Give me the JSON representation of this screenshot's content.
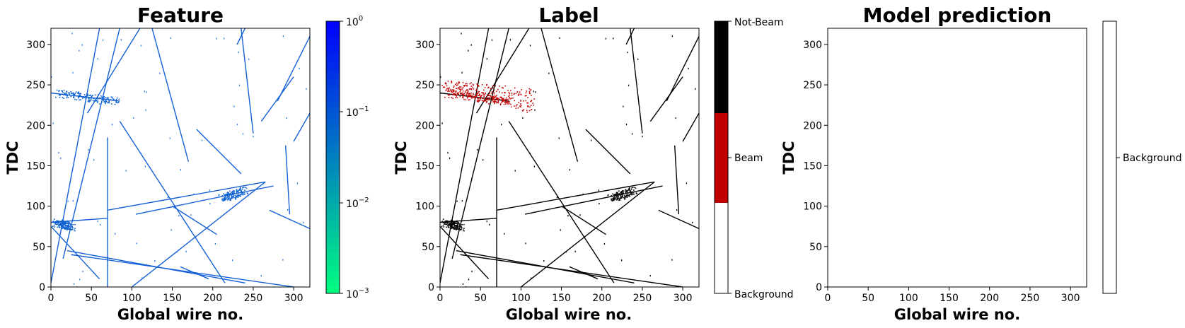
{
  "panels": [
    {
      "title": "Feature",
      "xlabel": "Global wire no.",
      "ylabel": "TDC",
      "colorbar": {
        "scale": "log",
        "range": [
          0.001,
          1
        ],
        "ticks": [
          {
            "base": "10",
            "exp": "0"
          },
          {
            "base": "10",
            "exp": "−1"
          },
          {
            "base": "10",
            "exp": "−2"
          },
          {
            "base": "10",
            "exp": "−3"
          }
        ],
        "colors": [
          "#00ff80",
          "#0000ff"
        ]
      }
    },
    {
      "title": "Label",
      "xlabel": "Global wire no.",
      "ylabel": "TDC",
      "colorbar": {
        "type": "categorical",
        "labels": [
          "Not-Beam",
          "Beam",
          "Background"
        ],
        "colors": [
          "#000000",
          "#c00000",
          "#ffffff"
        ]
      }
    },
    {
      "title": "Model prediction",
      "xlabel": "Global wire no.",
      "ylabel": "TDC",
      "colorbar": {
        "type": "categorical",
        "labels": [
          "Background"
        ],
        "colors": [
          "#ffffff"
        ]
      }
    }
  ],
  "chart_data": [
    {
      "type": "heatmap",
      "title": "Feature",
      "xlabel": "Global wire no.",
      "ylabel": "TDC",
      "xlim": [
        0,
        320
      ],
      "ylim": [
        0,
        320
      ],
      "xticks": [
        0,
        50,
        100,
        150,
        200,
        250,
        300
      ],
      "yticks": [
        0,
        50,
        100,
        150,
        200,
        250,
        300
      ],
      "color": "#1560d8",
      "tracks": [
        [
          [
            0,
            75
          ],
          [
            60,
            10
          ]
        ],
        [
          [
            0,
            5
          ],
          [
            60,
            320
          ]
        ],
        [
          [
            45,
            215
          ],
          [
            110,
            320
          ]
        ],
        [
          [
            15,
            35
          ],
          [
            85,
            320
          ]
        ],
        [
          [
            85,
            205
          ],
          [
            215,
            5
          ]
        ],
        [
          [
            230,
            300
          ],
          [
            245,
            330
          ]
        ],
        [
          [
            170,
            155
          ],
          [
            125,
            320
          ]
        ],
        [
          [
            150,
            100
          ],
          [
            205,
            65
          ]
        ],
        [
          [
            70,
            95
          ],
          [
            265,
            130
          ]
        ],
        [
          [
            100,
            0
          ],
          [
            265,
            130
          ]
        ],
        [
          [
            25,
            40
          ],
          [
            300,
            0
          ]
        ],
        [
          [
            70,
            185
          ],
          [
            70,
            0
          ]
        ],
        [
          [
            0,
            80
          ],
          [
            70,
            85
          ]
        ],
        [
          [
            105,
            90
          ],
          [
            275,
            125
          ]
        ],
        [
          [
            20,
            45
          ],
          [
            240,
            5
          ]
        ],
        [
          [
            180,
            195
          ],
          [
            235,
            140
          ]
        ],
        [
          [
            260,
            205
          ],
          [
            300,
            260
          ]
        ],
        [
          [
            280,
            230
          ],
          [
            320,
            310
          ]
        ],
        [
          [
            300,
            180
          ],
          [
            320,
            215
          ]
        ],
        [
          [
            270,
            95
          ],
          [
            325,
            70
          ]
        ],
        [
          [
            250,
            190
          ],
          [
            235,
            320
          ]
        ],
        [
          [
            295,
            90
          ],
          [
            290,
            175
          ]
        ],
        [
          [
            160,
            25
          ],
          [
            195,
            10
          ]
        ],
        [
          [
            0,
            240
          ],
          [
            85,
            230
          ]
        ]
      ],
      "blobs": [
        [
          [
            10,
            240
          ],
          [
            80,
            230
          ]
        ],
        [
          [
            5,
            80
          ],
          [
            25,
            75
          ]
        ],
        [
          [
            210,
            110
          ],
          [
            240,
            120
          ]
        ]
      ]
    },
    {
      "type": "heatmap",
      "title": "Label",
      "xlabel": "Global wire no.",
      "ylabel": "TDC",
      "xlim": [
        0,
        320
      ],
      "ylim": [
        0,
        320
      ],
      "xticks": [
        0,
        50,
        100,
        150,
        200,
        250,
        300
      ],
      "yticks": [
        0,
        50,
        100,
        150,
        200,
        250,
        300
      ],
      "classes": [
        "Background",
        "Beam",
        "Not-Beam"
      ],
      "beam_region": [
        [
          5,
          250
        ],
        [
          115,
          205
        ]
      ]
    },
    {
      "type": "heatmap",
      "title": "Model prediction",
      "xlabel": "Global wire no.",
      "ylabel": "TDC",
      "xlim": [
        0,
        320
      ],
      "ylim": [
        0,
        320
      ],
      "xticks": [
        0,
        50,
        100,
        150,
        200,
        250,
        300
      ],
      "yticks": [
        0,
        50,
        100,
        150,
        200,
        250,
        300
      ],
      "classes": [
        "Background"
      ]
    }
  ]
}
